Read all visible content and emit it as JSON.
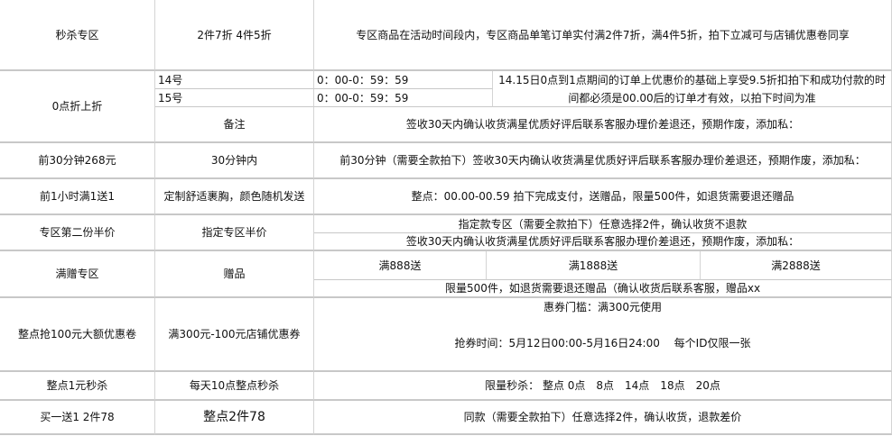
{
  "rows": {
    "r1": {
      "name": "秒杀专区",
      "rule": "2件7折 4件5折",
      "desc": "专区商品在活动时间段内，专区商品单笔订单实付满2件7折，满4件5折，拍下立减可与店铺优惠卷同享"
    },
    "r2": {
      "name": "0点折上折",
      "day1": "14号",
      "time1": "0：00-0：59：59",
      "day2": "15号",
      "time2": "0：00-0：59：59",
      "desc": "14.15日0点到1点期间的订单上优惠价的基础上享受9.5折扣拍下和成功付款的时间都必须是00.00后的订单才有效，以拍下时间为准",
      "note_label": "备注",
      "note": "签收30天内确认收货满星优质好评后联系客服办理价差退还，预期作废，添加私："
    },
    "r3": {
      "name": "前30分钟268元",
      "rule": "30分钟内",
      "desc": "前30分钟（需要全款拍下）签收30天内确认收货满星优质好评后联系客服办理价差退还，预期作废，添加私："
    },
    "r4": {
      "name": "前1小时满1送1",
      "rule": "定制舒适裹胸，颜色随机发送",
      "desc": "整点：00.00-00.59 拍下完成支付，送赠品，限量500件，如退货需要退还赠品"
    },
    "r5": {
      "name": "专区第二份半价",
      "rule": "指定专区半价",
      "desc1": "指定款专区（需要全款拍下）任意选择2件，确认收货不退款",
      "desc2": "签收30天内确认收货满星优质好评后联系客服办理价差退还，预期作废，添加私："
    },
    "r6": {
      "name": "满赠专区",
      "rule": "赠品",
      "tier1": "满888送",
      "tier2": "满1888送",
      "tier3": "满2888送",
      "desc": "限量500件，如退货需要退还赠品（确认收货后联系客服，赠品xx"
    },
    "r7": {
      "name": "整点抢100元大额优惠卷",
      "rule": "满300元-100元店铺优惠券",
      "desc1": "惠券门槛：满300元使用",
      "desc2": "抢券时间：5月12日00:00-5月16日24:00　 每个ID仅限一张"
    },
    "r8": {
      "name": "整点1元秒杀",
      "rule": "每天10点整点秒杀",
      "desc": "限量秒杀： 整点 0点　8点　14点　18点　20点"
    },
    "r9": {
      "name": "买一送1 2件78",
      "rule": "整点2件78",
      "desc": "同款（需要全款拍下）任意选择2件，确认收货，退款差价"
    }
  }
}
